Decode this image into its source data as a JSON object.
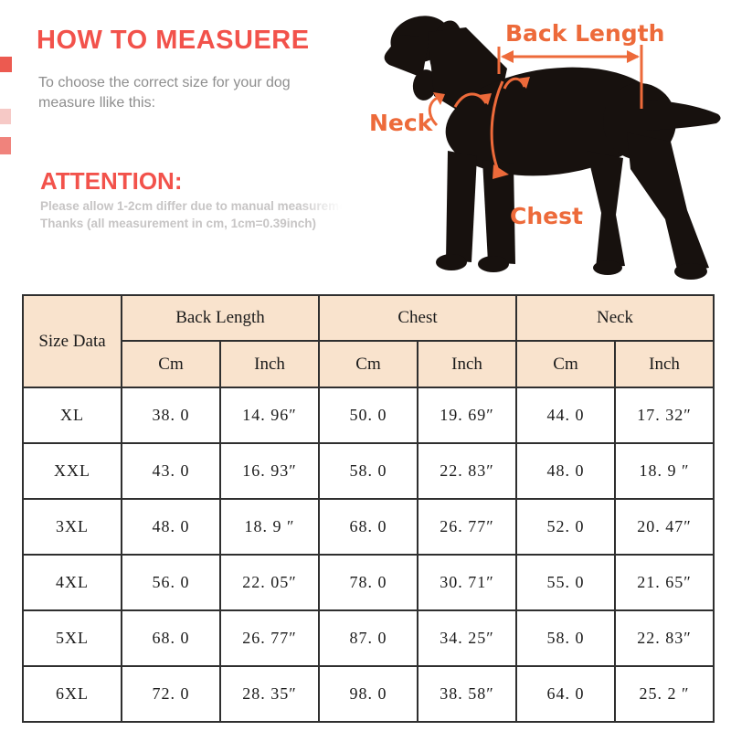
{
  "colors": {
    "accent_red": "#f2524b",
    "subtitle_gray": "#8e8e8e",
    "attention_gray": "#c7c5c5",
    "annotation_orange": "#ed6a3a",
    "dog_silhouette": "#17110e",
    "table_header_bg": "#f9e3cd",
    "table_border": "#2f2f2f"
  },
  "header": {
    "title": "HOW TO MEASUERE",
    "subtitle_line1": "To choose the correct size for your dog",
    "subtitle_line2": "measure llike this:",
    "attention_title": "ATTENTION:",
    "attention_line1": "Please allow 1-2cm differ due to manual measureme",
    "attention_line2": "Thanks (all measurement in cm, 1cm=0.39inch)"
  },
  "diagram": {
    "labels": {
      "back_length": "Back Length",
      "neck": "Neck",
      "chest": "Chest"
    }
  },
  "size_table": {
    "corner_label": "Size Data",
    "groups": [
      {
        "label": "Back Length"
      },
      {
        "label": "Chest"
      },
      {
        "label": "Neck"
      }
    ],
    "unit_headers": [
      "Cm",
      "Inch",
      "Cm",
      "Inch",
      "Cm",
      "Inch"
    ],
    "rows": [
      {
        "size": "XL",
        "cells": [
          "38. 0",
          "14. 96″",
          "50. 0",
          "19. 69″",
          "44. 0",
          "17. 32″"
        ]
      },
      {
        "size": "XXL",
        "cells": [
          "43. 0",
          "16. 93″",
          "58. 0",
          "22. 83″",
          "48. 0",
          "18. 9 ″"
        ]
      },
      {
        "size": "3XL",
        "cells": [
          "48. 0",
          "18. 9 ″",
          "68. 0",
          "26. 77″",
          "52. 0",
          "20. 47″"
        ]
      },
      {
        "size": "4XL",
        "cells": [
          "56. 0",
          "22. 05″",
          "78. 0",
          "30. 71″",
          "55. 0",
          "21. 65″"
        ]
      },
      {
        "size": "5XL",
        "cells": [
          "68. 0",
          "26. 77″",
          "87. 0",
          "34. 25″",
          "58. 0",
          "22. 83″"
        ]
      },
      {
        "size": "6XL",
        "cells": [
          "72. 0",
          "28. 35″",
          "98. 0",
          "38. 58″",
          "64. 0",
          "25. 2 ″"
        ]
      }
    ]
  }
}
